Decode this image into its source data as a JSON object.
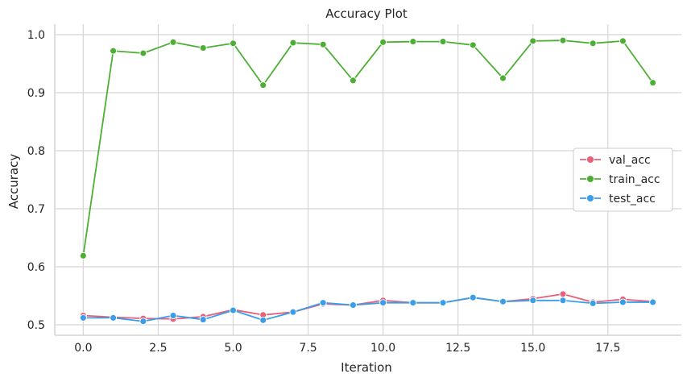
{
  "chart_data": {
    "type": "line",
    "title": "Accuracy Plot",
    "xlabel": "Iteration",
    "ylabel": "Accuracy",
    "xlim": [
      -0.95,
      19.95
    ],
    "ylim": [
      0.482,
      1.018
    ],
    "xticks": [
      0.0,
      2.5,
      5.0,
      7.5,
      10.0,
      12.5,
      15.0,
      17.5
    ],
    "xtick_labels": [
      "0.0",
      "2.5",
      "5.0",
      "7.5",
      "10.0",
      "12.5",
      "15.0",
      "17.5"
    ],
    "yticks": [
      0.5,
      0.6,
      0.7,
      0.8,
      0.9,
      1.0
    ],
    "ytick_labels": [
      "0.5",
      "0.6",
      "0.7",
      "0.8",
      "0.9",
      "1.0"
    ],
    "grid": true,
    "legend_position": "right",
    "x": [
      0,
      1,
      2,
      3,
      4,
      5,
      6,
      7,
      8,
      9,
      10,
      11,
      12,
      13,
      14,
      15,
      16,
      17,
      18,
      19
    ],
    "series": [
      {
        "name": "val_acc",
        "color": "#e8607a",
        "values": [
          0.516,
          0.513,
          0.511,
          0.51,
          0.514,
          0.526,
          0.517,
          0.522,
          0.536,
          0.534,
          0.542,
          0.538,
          0.538,
          0.547,
          0.54,
          0.545,
          0.553,
          0.539,
          0.544,
          0.54
        ]
      },
      {
        "name": "train_acc",
        "color": "#4caf34",
        "values": [
          0.619,
          0.972,
          0.968,
          0.987,
          0.977,
          0.985,
          0.913,
          0.986,
          0.983,
          0.921,
          0.987,
          0.988,
          0.988,
          0.982,
          0.925,
          0.989,
          0.99,
          0.985,
          0.989,
          0.917
        ]
      },
      {
        "name": "test_acc",
        "color": "#3a9de8",
        "values": [
          0.512,
          0.512,
          0.506,
          0.516,
          0.509,
          0.525,
          0.508,
          0.522,
          0.538,
          0.534,
          0.538,
          0.538,
          0.538,
          0.547,
          0.54,
          0.542,
          0.542,
          0.537,
          0.539,
          0.539
        ]
      }
    ]
  }
}
